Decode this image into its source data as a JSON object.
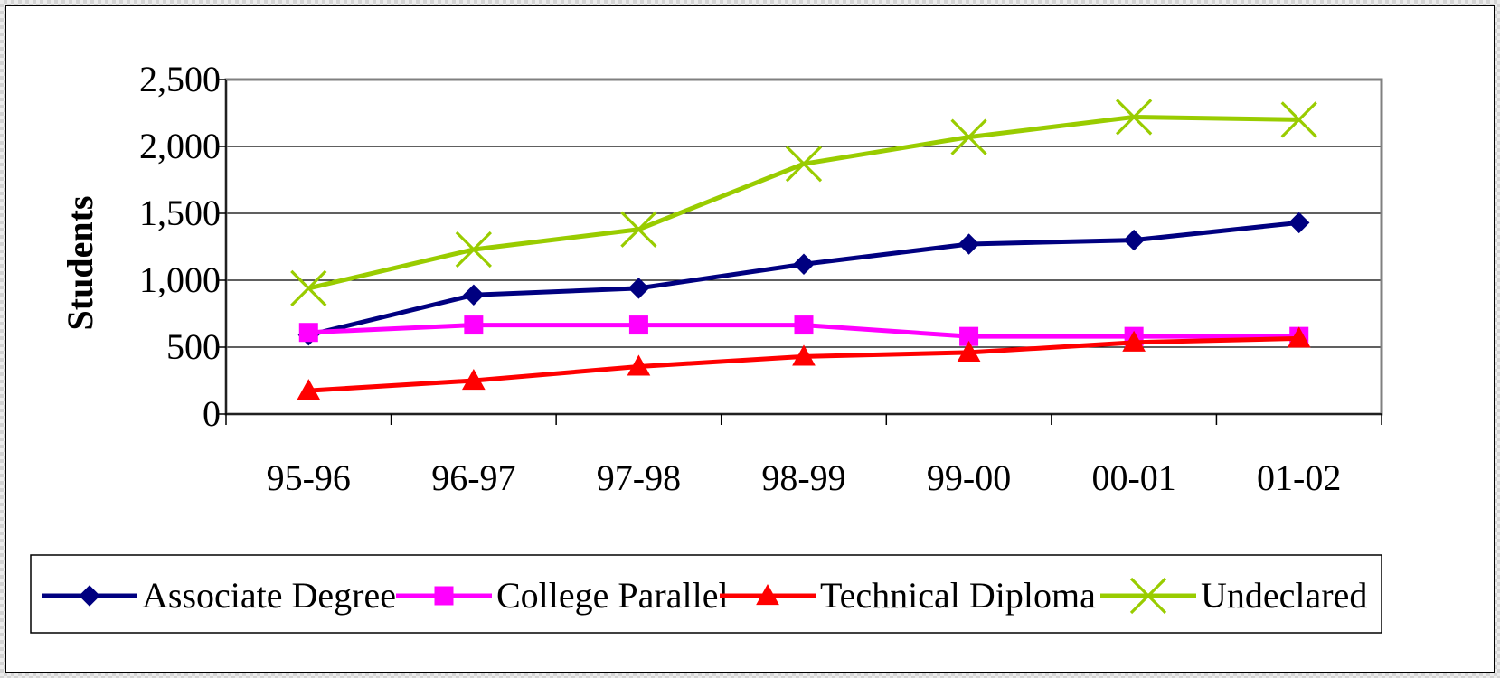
{
  "chart_data": {
    "type": "line",
    "title": "",
    "xlabel": "",
    "ylabel": "Students",
    "categories": [
      "95-96",
      "96-97",
      "97-98",
      "98-99",
      "99-00",
      "00-01",
      "01-02"
    ],
    "ylim": [
      0,
      2500
    ],
    "yticks": [
      0,
      500,
      1000,
      1500,
      2000,
      2500
    ],
    "ytick_labels": [
      "0",
      "500",
      "1,000",
      "1,500",
      "2,000",
      "2,500"
    ],
    "grid": true,
    "legend_position": "bottom",
    "series": [
      {
        "name": "Associate Degree",
        "values": [
          590,
          890,
          940,
          1120,
          1270,
          1300,
          1430
        ],
        "color": "#000080",
        "marker": "diamond"
      },
      {
        "name": "College Parallel",
        "values": [
          610,
          665,
          665,
          665,
          580,
          580,
          580
        ],
        "color": "#ff00ff",
        "marker": "square"
      },
      {
        "name": "Technical Diploma",
        "values": [
          175,
          250,
          355,
          430,
          460,
          535,
          565
        ],
        "color": "#ff0000",
        "marker": "triangle"
      },
      {
        "name": "Undeclared",
        "values": [
          940,
          1230,
          1380,
          1870,
          2070,
          2220,
          2200
        ],
        "color": "#99cc00",
        "marker": "x"
      }
    ]
  }
}
